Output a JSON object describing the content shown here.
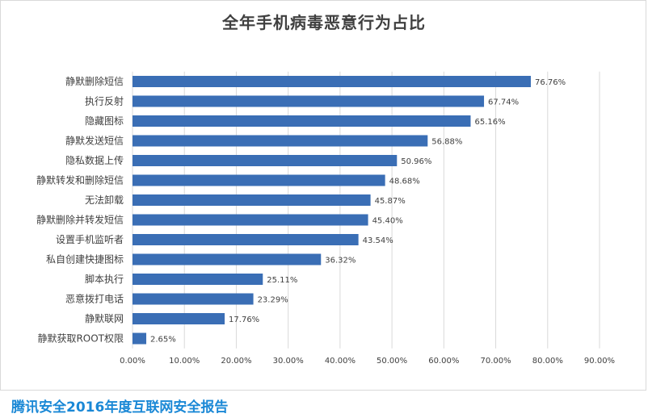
{
  "chart_data": {
    "type": "bar",
    "orientation": "horizontal",
    "title": "全年手机病毒恶意行为占比",
    "categories": [
      "静默删除短信",
      "执行反射",
      "隐藏图标",
      "静默发送短信",
      "隐私数据上传",
      "静默转发和删除短信",
      "无法卸载",
      "静默删除并转发短信",
      "设置手机监听者",
      "私自创建快捷图标",
      "脚本执行",
      "恶意拨打电话",
      "静默联网",
      "静默获取ROOT权限"
    ],
    "values": [
      76.76,
      67.74,
      65.16,
      56.88,
      50.96,
      48.68,
      45.87,
      45.4,
      43.54,
      36.32,
      25.11,
      23.29,
      17.76,
      2.65
    ],
    "value_labels": [
      "76.76%",
      "67.74%",
      "65.16%",
      "56.88%",
      "50.96%",
      "48.68%",
      "45.87%",
      "45.40%",
      "43.54%",
      "36.32%",
      "25.11%",
      "23.29%",
      "17.76%",
      "2.65%"
    ],
    "xlim": [
      0,
      90
    ],
    "xticks": [
      "0.00%",
      "10.00%",
      "20.00%",
      "30.00%",
      "40.00%",
      "50.00%",
      "60.00%",
      "70.00%",
      "80.00%",
      "90.00%"
    ],
    "grid": true,
    "bar_color": "#3a6eb5",
    "grid_color": "#d9d9d9"
  },
  "footer": {
    "text": "腾讯安全2016年度互联网安全报告",
    "color": "#1a88d6"
  }
}
